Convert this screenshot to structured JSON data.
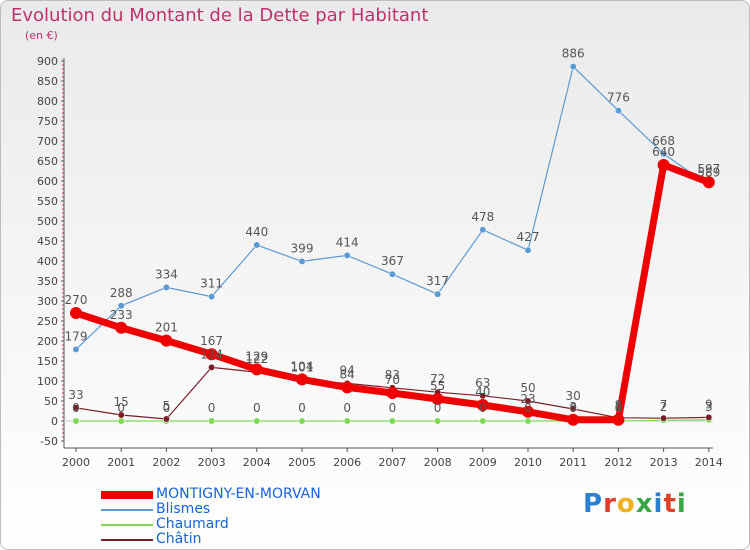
{
  "title": "Evolution du Montant de la Dette par Habitant",
  "subtitle": "(en €)",
  "logo": {
    "text": "Proxiti",
    "colors": [
      "#2b7fd0",
      "#e0402a",
      "#f2b21f",
      "#36a845",
      "#2b7fd0",
      "#e0402a",
      "#36a845"
    ]
  },
  "chart_data": {
    "type": "line",
    "title": "Evolution du Montant de la Dette par Habitant",
    "subtitle": "(en €)",
    "x": [
      "2000",
      "2001",
      "2002",
      "2003",
      "2004",
      "2005",
      "2006",
      "2007",
      "2008",
      "2009",
      "2010",
      "2011",
      "2012",
      "2013",
      "2014"
    ],
    "ylim": [
      -50,
      900
    ],
    "yticks": [
      -50,
      0,
      50,
      100,
      150,
      200,
      250,
      300,
      350,
      400,
      450,
      500,
      550,
      600,
      650,
      700,
      750,
      800,
      850,
      900
    ],
    "grid": false,
    "legend_position": "bottom-left",
    "series": [
      {
        "name": "MONTIGNY-EN-MORVAN",
        "color": "#ee0000",
        "values": [
          270,
          233,
          201,
          167,
          129,
          104,
          84,
          70,
          55,
          40,
          23,
          3,
          3,
          640,
          597
        ]
      },
      {
        "name": "Blismes",
        "color": "#5b9bd5",
        "values": [
          179,
          288,
          334,
          311,
          440,
          399,
          414,
          367,
          317,
          478,
          427,
          886,
          776,
          668,
          589
        ]
      },
      {
        "name": "Chaumard",
        "color": "#7ed957",
        "values": [
          0,
          0,
          0,
          0,
          0,
          0,
          0,
          0,
          0,
          0,
          0,
          0,
          0,
          2,
          3
        ]
      },
      {
        "name": "Châtin",
        "color": "#7a1f28",
        "values": [
          33,
          15,
          5,
          134,
          122,
          101,
          94,
          83,
          72,
          63,
          50,
          30,
          8,
          7,
          9
        ]
      }
    ]
  }
}
